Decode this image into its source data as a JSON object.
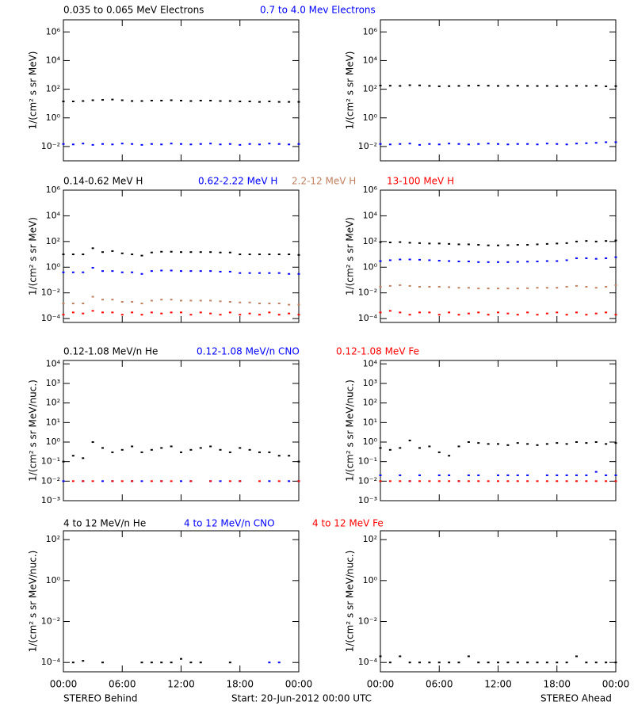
{
  "chart_data": {
    "type": "scatter",
    "log_scale": true,
    "x": [
      0,
      1,
      2,
      3,
      4,
      5,
      6,
      7,
      8,
      9,
      10,
      11,
      12,
      13,
      14,
      15,
      16,
      17,
      18,
      19,
      20,
      21,
      22,
      23,
      24
    ],
    "xlim": [
      0,
      24
    ],
    "xticks": [
      {
        "value": 0,
        "label": "00:00"
      },
      {
        "value": 6,
        "label": "06:00"
      },
      {
        "value": 12,
        "label": "12:00"
      },
      {
        "value": 18,
        "label": "18:00"
      },
      {
        "value": 24,
        "label": "00:00"
      }
    ],
    "footer": {
      "left": "STEREO Behind",
      "center": "Start: 20-Jun-2012 00:00 UTC",
      "right": "STEREO Ahead"
    },
    "rows": [
      {
        "y_label": "1/(cm² s sr MeV)",
        "ylim": [
          0.001,
          7000000
        ],
        "yticks": [
          {
            "value": 0.01,
            "label": "10⁻²"
          },
          {
            "value": 1,
            "label": "10⁰"
          },
          {
            "value": 100,
            "label": "10²"
          },
          {
            "value": 10000,
            "label": "10⁴"
          },
          {
            "value": 1000000,
            "label": "10⁶"
          }
        ],
        "series": [
          {
            "name": "0.035 to 0.065 MeV Electrons",
            "color": "#000000",
            "behind": [
              14,
              14,
              15,
              17,
              18,
              19,
              17,
              15,
              15,
              16,
              16,
              17,
              16,
              15,
              16,
              16,
              15,
              15,
              14,
              14,
              13,
              14,
              13,
              13,
              13
            ],
            "ahead": [
              180,
              175,
              170,
              190,
              185,
              170,
              160,
              165,
              170,
              175,
              180,
              175,
              170,
              172,
              175,
              170,
              168,
              170,
              165,
              168,
              172,
              170,
              175,
              160,
              165
            ]
          },
          {
            "name": "0.7 to 4.0 Mev Electrons",
            "color": "#0000ff",
            "behind": [
              0.015,
              0.014,
              0.016,
              0.013,
              0.015,
              0.014,
              0.016,
              0.015,
              0.013,
              0.015,
              0.014,
              0.016,
              0.015,
              0.014,
              0.015,
              0.016,
              0.014,
              0.015,
              0.013,
              0.015,
              0.014,
              0.016,
              0.015,
              0.014,
              0.015
            ],
            "ahead": [
              0.015,
              0.014,
              0.015,
              0.016,
              0.013,
              0.015,
              0.014,
              0.016,
              0.015,
              0.014,
              0.015,
              0.016,
              0.015,
              0.014,
              0.015,
              0.015,
              0.014,
              0.016,
              0.015,
              0.014,
              0.016,
              0.017,
              0.018,
              0.02,
              0.02
            ]
          }
        ]
      },
      {
        "y_label": "1/(cm² s sr MeV)",
        "ylim": [
          5e-05,
          1000000
        ],
        "yticks": [
          {
            "value": 0.0001,
            "label": "10⁻⁴"
          },
          {
            "value": 0.01,
            "label": "10⁻²"
          },
          {
            "value": 1,
            "label": "10⁰"
          },
          {
            "value": 100,
            "label": "10²"
          },
          {
            "value": 10000,
            "label": "10⁴"
          },
          {
            "value": 1000000,
            "label": "10⁶"
          }
        ],
        "series": [
          {
            "name": "0.14-0.62 MeV H",
            "color": "#000000",
            "behind": [
              10,
              10,
              10,
              30,
              15,
              18,
              12,
              10,
              8,
              14,
              16,
              16,
              15,
              15,
              15,
              15,
              14,
              14,
              10,
              10,
              10,
              10,
              10,
              10,
              9
            ],
            "ahead": [
              90,
              85,
              90,
              80,
              75,
              70,
              70,
              65,
              60,
              60,
              55,
              50,
              50,
              52,
              55,
              55,
              60,
              65,
              70,
              75,
              100,
              110,
              100,
              110,
              120
            ]
          },
          {
            "name": "0.62-2.22 MeV H",
            "color": "#0000ff",
            "behind": [
              0.4,
              0.4,
              0.4,
              0.9,
              0.5,
              0.5,
              0.4,
              0.4,
              0.3,
              0.5,
              0.55,
              0.55,
              0.5,
              0.5,
              0.5,
              0.5,
              0.45,
              0.45,
              0.35,
              0.35,
              0.35,
              0.35,
              0.35,
              0.3,
              0.3
            ],
            "ahead": [
              3,
              3.5,
              4,
              4,
              3.8,
              3.5,
              3.2,
              3,
              2.8,
              2.8,
              2.5,
              2.5,
              2.5,
              2.5,
              2.6,
              2.7,
              2.8,
              3,
              3,
              3.5,
              5,
              5,
              4.5,
              5,
              6
            ]
          },
          {
            "name": "2.2-12 MeV H",
            "color": "#c08060",
            "behind": [
              0.0015,
              0.0015,
              0.0015,
              0.005,
              0.003,
              0.003,
              0.002,
              0.002,
              0.0015,
              0.0025,
              0.003,
              0.003,
              0.0025,
              0.0025,
              0.0025,
              0.0025,
              0.0022,
              0.002,
              0.0018,
              0.0018,
              0.0015,
              0.0015,
              0.0015,
              0.0012,
              0.0012
            ],
            "ahead": [
              0.03,
              0.035,
              0.04,
              0.035,
              0.03,
              0.03,
              0.03,
              0.028,
              0.025,
              0.025,
              0.022,
              0.022,
              0.022,
              0.022,
              0.022,
              0.023,
              0.025,
              0.025,
              0.025,
              0.03,
              0.035,
              0.03,
              0.025,
              0.03,
              0.04
            ]
          },
          {
            "name": "13-100 MeV H",
            "color": "#ff0000",
            "behind": [
              0.0002,
              0.0003,
              0.00025,
              0.0004,
              0.0003,
              0.0003,
              0.0002,
              0.0003,
              0.0002,
              0.0003,
              0.00025,
              0.0003,
              0.0003,
              0.0002,
              0.0003,
              0.00025,
              0.0002,
              0.0003,
              0.0002,
              0.00025,
              0.0002,
              0.0003,
              0.0002,
              0.00025,
              0.0002
            ],
            "ahead": [
              0.0003,
              0.0004,
              0.0003,
              0.0002,
              0.0003,
              0.0003,
              0.0002,
              0.0003,
              0.0002,
              0.00025,
              0.0003,
              0.0002,
              0.0003,
              0.00025,
              0.0002,
              0.0003,
              0.0002,
              0.00025,
              0.0003,
              0.0002,
              0.0003,
              0.0002,
              0.00025,
              0.0003,
              0.0002
            ]
          }
        ]
      },
      {
        "y_label": "1/(cm² s sr MeV/nuc.)",
        "ylim": [
          0.001,
          15000
        ],
        "yticks": [
          {
            "value": 0.001,
            "label": "10⁻³"
          },
          {
            "value": 0.01,
            "label": "10⁻²"
          },
          {
            "value": 0.1,
            "label": "10⁻¹"
          },
          {
            "value": 1,
            "label": "10⁰"
          },
          {
            "value": 10,
            "label": "10¹"
          },
          {
            "value": 100,
            "label": "10²"
          },
          {
            "value": 1000,
            "label": "10³"
          },
          {
            "value": 10000,
            "label": "10⁴"
          }
        ],
        "series": [
          {
            "name": "0.12-1.08 MeV/n He",
            "color": "#000000",
            "behind": [
              0.1,
              0.2,
              0.15,
              1.0,
              0.5,
              0.3,
              0.4,
              0.6,
              0.3,
              0.4,
              0.5,
              0.6,
              0.3,
              0.4,
              0.5,
              0.6,
              0.4,
              0.3,
              0.5,
              0.4,
              0.3,
              0.3,
              0.2,
              0.2,
              0.1
            ],
            "ahead": [
              0.5,
              0.4,
              0.5,
              1.2,
              0.5,
              0.6,
              0.3,
              0.2,
              0.6,
              1.0,
              0.9,
              0.8,
              0.8,
              0.7,
              0.9,
              0.8,
              0.7,
              0.8,
              0.9,
              0.8,
              1.0,
              0.9,
              1.0,
              0.8,
              0.9
            ]
          },
          {
            "name": "0.12-1.08 MeV/n CNO",
            "color": "#0000ff",
            "behind": [
              0.01,
              null,
              0.01,
              null,
              0.01,
              0.01,
              null,
              0.01,
              0.01,
              null,
              0.01,
              null,
              0.01,
              0.01,
              null,
              0.01,
              0.01,
              null,
              0.01,
              null,
              null,
              0.01,
              null,
              0.01,
              0.01
            ],
            "ahead": [
              0.02,
              null,
              0.02,
              0.01,
              0.02,
              null,
              0.02,
              0.02,
              0.01,
              0.02,
              0.02,
              null,
              0.02,
              0.02,
              0.02,
              0.02,
              null,
              0.02,
              0.02,
              0.02,
              0.02,
              0.02,
              0.03,
              0.02,
              0.02
            ]
          },
          {
            "name": "0.12-1.08 MeV Fe",
            "color": "#ff0000",
            "behind": [
              null,
              0.01,
              0.01,
              0.01,
              null,
              0.01,
              0.01,
              0.01,
              null,
              0.01,
              0.01,
              0.01,
              null,
              0.01,
              null,
              0.01,
              null,
              0.01,
              0.01,
              null,
              0.01,
              null,
              0.01,
              null,
              0.01
            ],
            "ahead": [
              0.01,
              0.01,
              0.01,
              0.01,
              0.01,
              0.01,
              0.01,
              0.01,
              0.01,
              0.01,
              0.01,
              0.01,
              0.01,
              0.01,
              0.01,
              0.01,
              0.01,
              0.01,
              0.01,
              0.01,
              0.01,
              0.01,
              0.01,
              0.01,
              0.01
            ]
          }
        ]
      },
      {
        "y_label": "1/(cm² s sr MeV/nuc.)",
        "ylim": [
          3.5e-05,
          270
        ],
        "yticks": [
          {
            "value": 0.0001,
            "label": "10⁻⁴"
          },
          {
            "value": 0.01,
            "label": "10⁻²"
          },
          {
            "value": 1,
            "label": "10⁰"
          },
          {
            "value": 100,
            "label": "10²"
          }
        ],
        "series": [
          {
            "name": "4 to 12 MeV/n He",
            "color": "#000000",
            "behind": [
              null,
              0.0001,
              0.00012,
              null,
              0.0001,
              null,
              null,
              null,
              0.0001,
              0.0001,
              0.0001,
              0.0001,
              0.00015,
              0.0001,
              0.0001,
              null,
              null,
              0.0001,
              null,
              null,
              null,
              null,
              null,
              null,
              null
            ],
            "ahead": [
              0.0002,
              0.0001,
              0.0002,
              0.0001,
              0.0001,
              0.0001,
              0.0001,
              0.0001,
              0.0001,
              0.0002,
              0.0001,
              0.0001,
              0.0001,
              0.0001,
              0.0001,
              0.0001,
              0.0001,
              0.0001,
              0.0001,
              0.0001,
              0.0002,
              0.0001,
              0.0001,
              0.0001,
              0.0001
            ]
          },
          {
            "name": "4 to 12 MeV/n CNO",
            "color": "#0000ff",
            "behind": [
              null,
              null,
              null,
              null,
              null,
              null,
              null,
              null,
              null,
              null,
              null,
              null,
              null,
              null,
              null,
              null,
              null,
              null,
              null,
              null,
              null,
              0.0001,
              0.0001,
              null,
              null
            ],
            "ahead": [
              null,
              null,
              null,
              null,
              null,
              null,
              null,
              null,
              null,
              null,
              null,
              null,
              null,
              null,
              null,
              null,
              null,
              null,
              null,
              null,
              null,
              null,
              null,
              null,
              null
            ]
          },
          {
            "name": "4 to 12 MeV Fe",
            "color": "#ff0000",
            "behind": [
              null,
              null,
              null,
              null,
              null,
              null,
              null,
              null,
              null,
              null,
              null,
              null,
              null,
              null,
              null,
              null,
              null,
              null,
              null,
              null,
              null,
              null,
              null,
              null,
              null
            ],
            "ahead": [
              null,
              null,
              null,
              null,
              null,
              null,
              null,
              null,
              null,
              null,
              null,
              null,
              null,
              null,
              null,
              null,
              null,
              null,
              null,
              null,
              null,
              null,
              null,
              null,
              null
            ]
          }
        ]
      }
    ]
  }
}
